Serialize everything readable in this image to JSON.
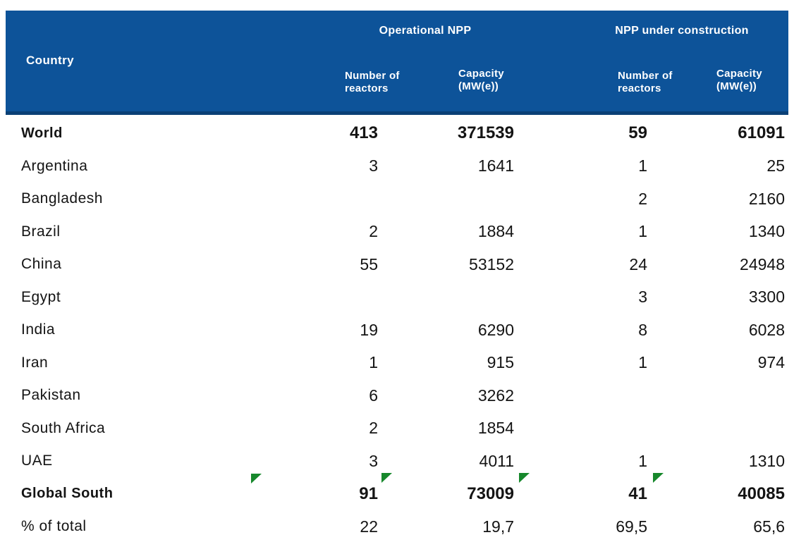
{
  "header": {
    "country": "Country",
    "operational_group": "Operational NPP",
    "construction_group": "NPP under construction",
    "number_of_line1": "Number of",
    "number_of_line2": "reactors",
    "capacity_line1": "Capacity",
    "capacity_line2": "(MW(e))"
  },
  "chart_data": {
    "type": "table",
    "row_header_column": "Country",
    "column_groups": [
      {
        "label": "Operational NPP",
        "columns": [
          "Number of reactors",
          "Capacity (MW(e))"
        ]
      },
      {
        "label": "NPP under construction",
        "columns": [
          "Number of reactors",
          "Capacity (MW(e))"
        ]
      }
    ],
    "rows": [
      {
        "country": "World",
        "op_reactors": "413",
        "op_capacity": "371539",
        "uc_reactors": "59",
        "uc_capacity": "61091",
        "bold": true
      },
      {
        "country": "Argentina",
        "op_reactors": "3",
        "op_capacity": "1641",
        "uc_reactors": "1",
        "uc_capacity": "25"
      },
      {
        "country": "Bangladesh",
        "op_reactors": "",
        "op_capacity": "",
        "uc_reactors": "2",
        "uc_capacity": "2160"
      },
      {
        "country": "Brazil",
        "op_reactors": "2",
        "op_capacity": "1884",
        "uc_reactors": "1",
        "uc_capacity": "1340"
      },
      {
        "country": "China",
        "op_reactors": "55",
        "op_capacity": "53152",
        "uc_reactors": "24",
        "uc_capacity": "24948"
      },
      {
        "country": "Egypt",
        "op_reactors": "",
        "op_capacity": "",
        "uc_reactors": "3",
        "uc_capacity": "3300"
      },
      {
        "country": "India",
        "op_reactors": "19",
        "op_capacity": "6290",
        "uc_reactors": "8",
        "uc_capacity": "6028"
      },
      {
        "country": "Iran",
        "op_reactors": "1",
        "op_capacity": "915",
        "uc_reactors": "1",
        "uc_capacity": "974"
      },
      {
        "country": "Pakistan",
        "op_reactors": "6",
        "op_capacity": "3262",
        "uc_reactors": "",
        "uc_capacity": ""
      },
      {
        "country": "South Africa",
        "op_reactors": "2",
        "op_capacity": "1854",
        "uc_reactors": "",
        "uc_capacity": ""
      },
      {
        "country": "UAE",
        "op_reactors": "3",
        "op_capacity": "4011",
        "uc_reactors": "1",
        "uc_capacity": "1310"
      },
      {
        "country": "Global South",
        "op_reactors": "91",
        "op_capacity": "73009",
        "uc_reactors": "41",
        "uc_capacity": "40085",
        "bold": true
      },
      {
        "country": "% of total",
        "op_reactors": "22",
        "op_capacity": "19,7",
        "uc_reactors": "69,5",
        "uc_capacity": "65,6"
      }
    ],
    "markers": {
      "description": "green corner markers beside Global South row totals",
      "color": "#17882c",
      "count": 4
    }
  },
  "colors": {
    "header_bg": "#0d5399",
    "header_border": "#0a4076",
    "marker_green": "#17882c",
    "header_text": "#ffffff",
    "body_text": "#141414"
  }
}
